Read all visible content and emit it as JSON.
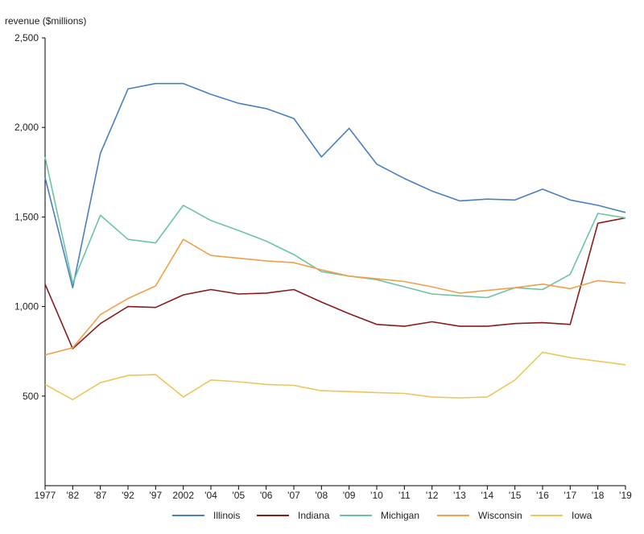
{
  "chart_data": {
    "type": "line",
    "ylabel": "revenue ($millions)",
    "categories": [
      "1977",
      "'82",
      "'87",
      "'92",
      "'97",
      "2002",
      "'04",
      "'05",
      "'06",
      "'07",
      "'08",
      "'09",
      "'10",
      "'11",
      "'12",
      "'13",
      "'14",
      "'15",
      "'16",
      "'17",
      "'18",
      "'19"
    ],
    "yticks": [
      "500",
      "1,000",
      "1,500",
      "2,000",
      "2,500"
    ],
    "ylim": [
      0,
      2500
    ],
    "grid": false,
    "legend_position": "bottom",
    "series": [
      {
        "name": "Illinois",
        "color": "#4a7fc1",
        "values": [
          1720,
          1105,
          1855,
          2215,
          2245,
          2245,
          2185,
          2135,
          2105,
          2050,
          1835,
          1995,
          1795,
          1715,
          1645,
          1590,
          1600,
          1595,
          1655,
          1595,
          1565,
          1525
        ]
      },
      {
        "name": "Indiana",
        "color": "#8b1a1a",
        "values": [
          1125,
          765,
          905,
          1000,
          995,
          1065,
          1095,
          1070,
          1075,
          1095,
          1025,
          960,
          900,
          890,
          915,
          890,
          890,
          905,
          910,
          900,
          1465,
          1495
        ]
      },
      {
        "name": "Michigan",
        "color": "#6cc5a0",
        "values": [
          1835,
          1130,
          1510,
          1375,
          1355,
          1565,
          1480,
          1425,
          1365,
          1290,
          1195,
          1170,
          1150,
          1110,
          1070,
          1060,
          1050,
          1105,
          1095,
          1180,
          1520,
          1495
        ]
      },
      {
        "name": "Wisconsin",
        "color": "#f0a04b",
        "values": [
          730,
          770,
          955,
          1045,
          1115,
          1375,
          1285,
          1270,
          1255,
          1245,
          1205,
          1170,
          1155,
          1140,
          1110,
          1075,
          1090,
          1105,
          1125,
          1100,
          1145,
          1130
        ]
      },
      {
        "name": "Iowa",
        "color": "#ecc65a",
        "values": [
          565,
          480,
          575,
          615,
          620,
          495,
          590,
          580,
          565,
          560,
          530,
          525,
          520,
          515,
          495,
          490,
          495,
          590,
          745,
          715,
          695,
          675
        ]
      }
    ]
  }
}
